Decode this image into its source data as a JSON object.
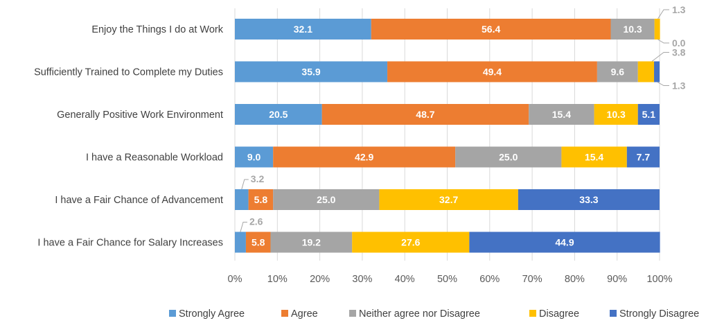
{
  "chart_data": {
    "type": "bar",
    "orientation": "horizontal",
    "stacked": "percent",
    "title": "",
    "xlabel": "",
    "ylabel": "",
    "xlim": [
      0,
      100
    ],
    "x_ticks": [
      "0%",
      "10%",
      "20%",
      "30%",
      "40%",
      "50%",
      "60%",
      "70%",
      "80%",
      "90%",
      "100%"
    ],
    "grid": "vertical",
    "legend_position": "bottom",
    "categories": [
      "Enjoy the Things I do at Work",
      "Sufficiently Trained to Complete my Duties",
      "Generally Positive Work Environment",
      "I have a Reasonable Workload",
      "I have a Fair Chance of Advancement",
      "I have a Fair Chance for Salary Increases"
    ],
    "series": [
      {
        "name": "Strongly Agree",
        "color": "#5b9bd5",
        "values": [
          32.1,
          35.9,
          20.5,
          9.0,
          3.2,
          2.6
        ]
      },
      {
        "name": "Agree",
        "color": "#ed7d31",
        "values": [
          56.4,
          49.4,
          48.7,
          42.9,
          5.8,
          5.8
        ]
      },
      {
        "name": "Neither agree nor Disagree",
        "color": "#a5a5a5",
        "values": [
          10.3,
          9.6,
          15.4,
          25.0,
          25.0,
          19.2
        ]
      },
      {
        "name": "Disagree",
        "color": "#ffc000",
        "values": [
          1.3,
          3.8,
          10.3,
          15.4,
          32.7,
          27.6
        ]
      },
      {
        "name": "Strongly Disagree",
        "color": "#4472c4",
        "values": [
          0.0,
          1.3,
          5.1,
          7.7,
          33.3,
          44.9
        ]
      }
    ],
    "callout_labels": [
      {
        "category": "Enjoy the Things I do at Work",
        "series": "Disagree",
        "text": "1.3"
      },
      {
        "category": "Enjoy the Things I do at Work",
        "series": "Strongly Disagree",
        "text": "0.0"
      },
      {
        "category": "Sufficiently Trained to Complete my Duties",
        "series": "Disagree",
        "text": "3.8"
      },
      {
        "category": "Sufficiently Trained to Complete my Duties",
        "series": "Strongly Disagree",
        "text": "1.3"
      },
      {
        "category": "I have a Fair Chance of Advancement",
        "series": "Strongly Agree",
        "text": "3.2"
      },
      {
        "category": "I have a Fair Chance for Salary Increases",
        "series": "Strongly Agree",
        "text": "2.6"
      }
    ]
  }
}
